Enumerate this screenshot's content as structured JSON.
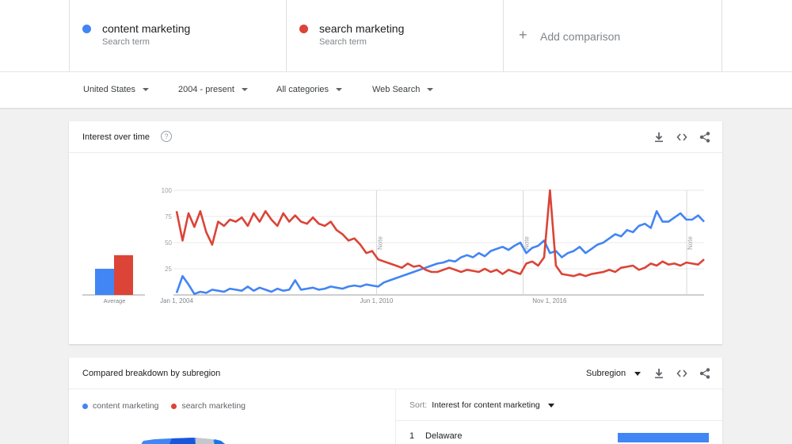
{
  "compare": {
    "terms": [
      {
        "name": "content marketing",
        "sub": "Search term",
        "color": "#4285f4"
      },
      {
        "name": "search marketing",
        "sub": "Search term",
        "color": "#db4437"
      }
    ],
    "add_label": "Add comparison"
  },
  "filters": [
    {
      "label": "United States"
    },
    {
      "label": "2004 - present"
    },
    {
      "label": "All categories"
    },
    {
      "label": "Web Search"
    }
  ],
  "interest": {
    "title": "Interest over time",
    "help": "?"
  },
  "chart_data": {
    "type": "line",
    "ylim": [
      0,
      100
    ],
    "yticks": [
      "100",
      "75",
      "50",
      "25"
    ],
    "xticks": [
      {
        "label": "Jan 1, 2004",
        "t": 0.0
      },
      {
        "label": "Jun 1, 2010",
        "t": 0.379
      },
      {
        "label": "Nov 1, 2016",
        "t": 0.707
      }
    ],
    "notes": [
      {
        "label": "Note",
        "t": 0.379
      },
      {
        "label": "Note",
        "t": 0.657
      },
      {
        "label": "Note",
        "t": 0.967
      }
    ],
    "average": {
      "label": "Average",
      "values": [
        25,
        38
      ]
    },
    "series": [
      {
        "name": "content marketing",
        "color": "#4285f4",
        "values": [
          2,
          18,
          10,
          1,
          3,
          2,
          5,
          4,
          3,
          6,
          5,
          4,
          8,
          4,
          7,
          5,
          3,
          6,
          4,
          5,
          14,
          5,
          6,
          7,
          5,
          6,
          8,
          7,
          6,
          8,
          9,
          8,
          10,
          9,
          8,
          12,
          14,
          16,
          18,
          20,
          22,
          24,
          26,
          28,
          30,
          31,
          33,
          32,
          36,
          38,
          36,
          40,
          37,
          42,
          44,
          46,
          43,
          47,
          50,
          40,
          45,
          47,
          52,
          40,
          42,
          36,
          40,
          42,
          46,
          40,
          44,
          48,
          50,
          54,
          58,
          56,
          62,
          60,
          66,
          68,
          64,
          80,
          70,
          70,
          74,
          78,
          72,
          72,
          76,
          70
        ]
      },
      {
        "name": "search marketing",
        "color": "#db4437",
        "values": [
          80,
          52,
          78,
          65,
          80,
          60,
          48,
          70,
          66,
          72,
          70,
          74,
          66,
          78,
          70,
          80,
          72,
          66,
          78,
          70,
          76,
          70,
          68,
          74,
          68,
          66,
          70,
          62,
          58,
          52,
          54,
          48,
          40,
          42,
          34,
          32,
          30,
          28,
          26,
          30,
          27,
          28,
          24,
          22,
          22,
          24,
          26,
          24,
          22,
          24,
          23,
          22,
          25,
          22,
          24,
          20,
          24,
          22,
          20,
          30,
          32,
          28,
          36,
          100,
          28,
          20,
          19,
          18,
          20,
          18,
          20,
          21,
          22,
          24,
          22,
          26,
          27,
          28,
          24,
          26,
          30,
          28,
          32,
          29,
          30,
          28,
          31,
          30,
          29,
          34
        ]
      }
    ]
  },
  "breakdown": {
    "title": "Compared breakdown by subregion",
    "subregion_label": "Subregion",
    "legend": [
      {
        "name": "content marketing",
        "color": "#4285f4"
      },
      {
        "name": "search marketing",
        "color": "#db4437"
      }
    ],
    "sort_label": "Sort:",
    "sort_value": "Interest for content marketing",
    "rows": [
      {
        "rank": "1",
        "region": "Delaware",
        "share": 0.93
      }
    ]
  },
  "icons": [
    "download-icon",
    "embed-icon",
    "share-icon",
    "help-icon",
    "plus-icon"
  ]
}
